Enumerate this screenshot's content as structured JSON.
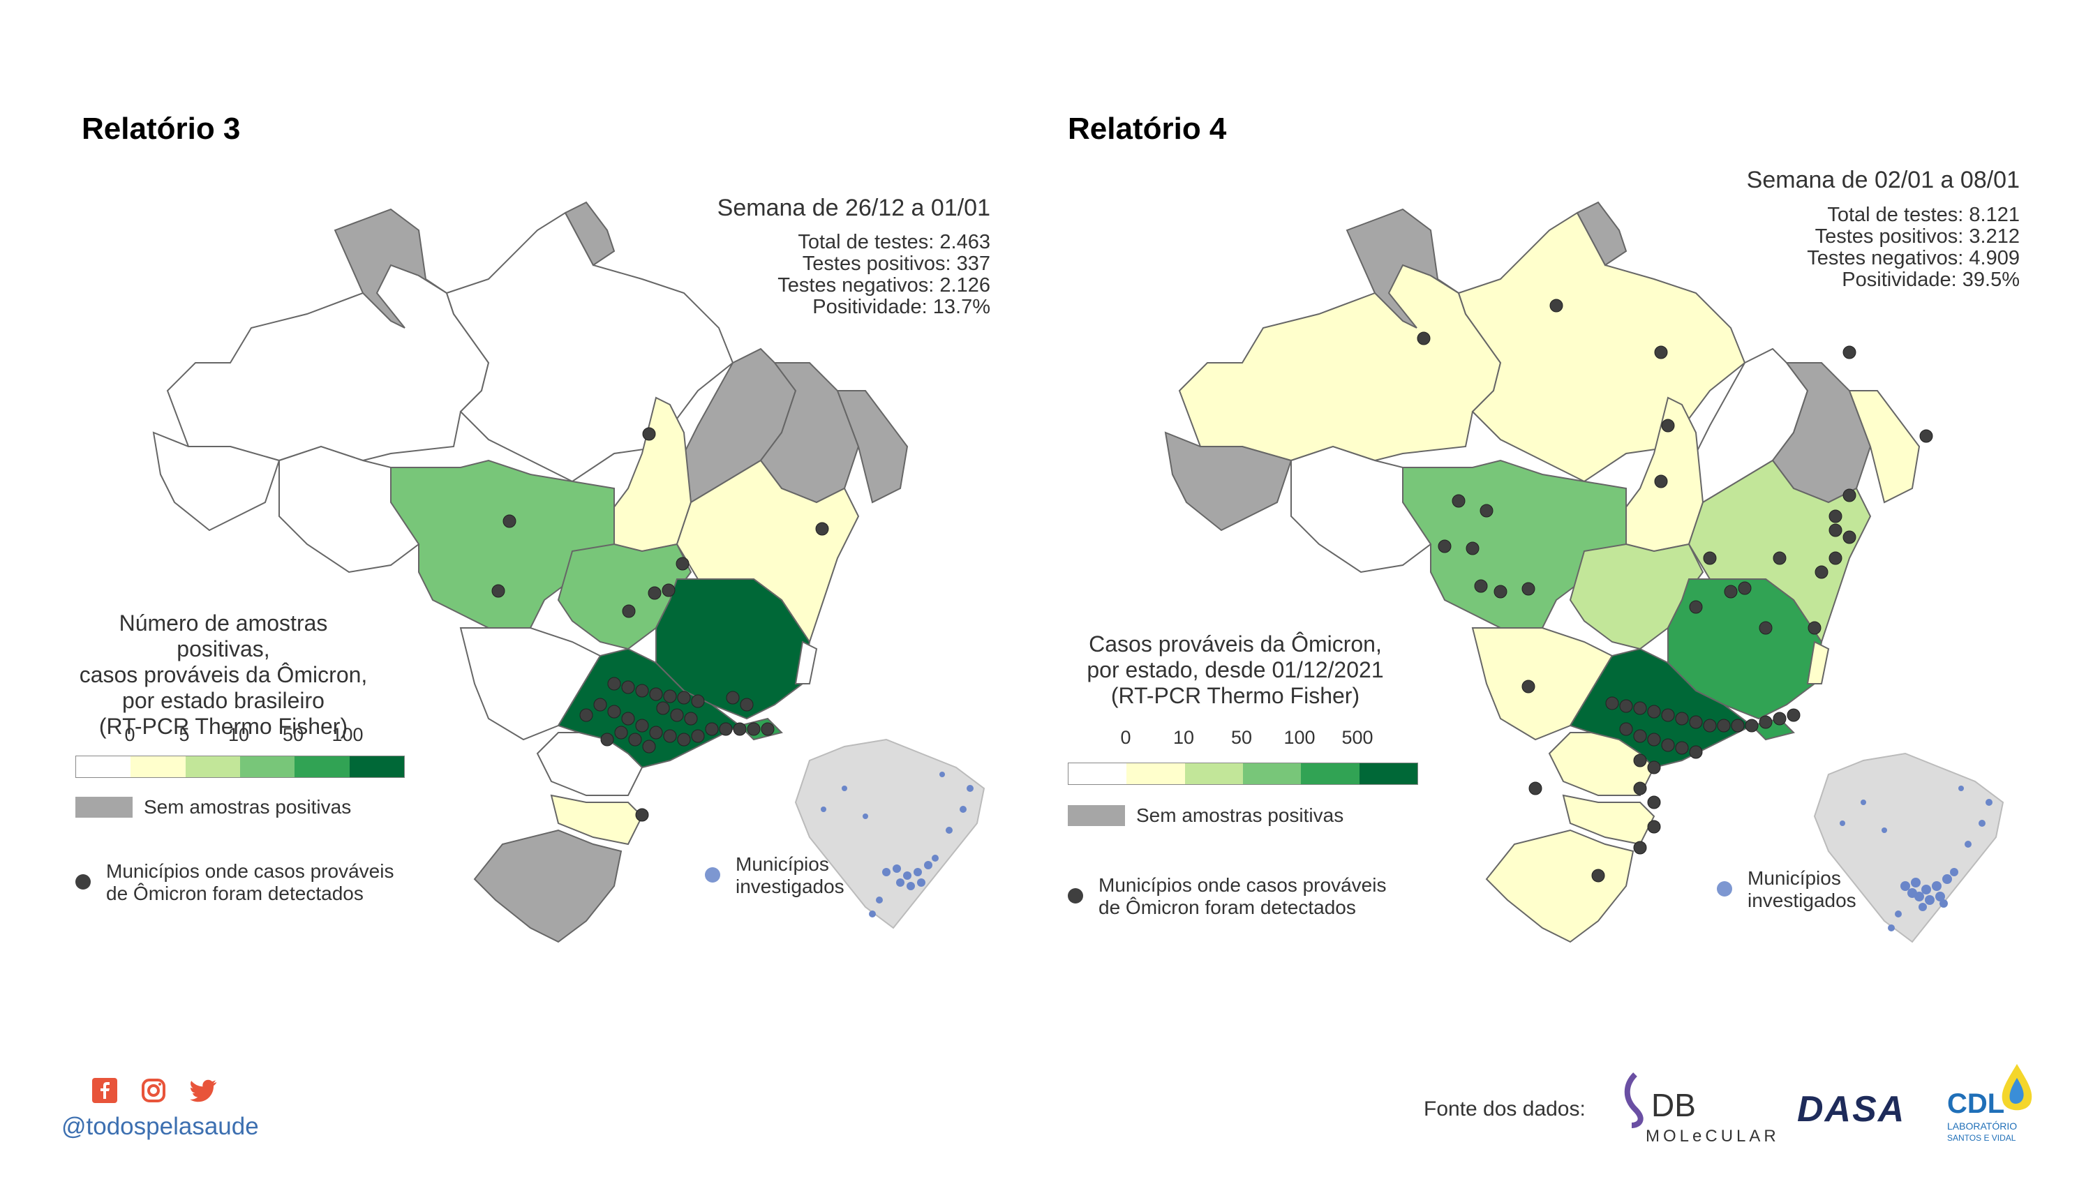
{
  "panels": [
    {
      "title": "Relatório 3",
      "week": "Semana de 26/12 a 01/01",
      "stats": [
        "Total de testes: 2.463",
        "Testes positivos: 337",
        "Testes negativos: 2.126",
        "Positividade: 13.7%"
      ],
      "legend_title": [
        "Número de amostras positivas,",
        "casos prováveis da Ômicron,",
        "por estado brasileiro",
        "(RT-PCR Thermo Fisher)"
      ],
      "legend_ticks": [
        "0",
        "5",
        "10",
        "50",
        "100"
      ],
      "legend_colors": [
        "#ffffff",
        "#ffffcc",
        "#c2e699",
        "#78c679",
        "#31a354",
        "#006837"
      ]
    },
    {
      "title": "Relatório 4",
      "week": "Semana de 02/01 a 08/01",
      "stats": [
        "Total de testes: 8.121",
        "Testes positivos: 3.212",
        "Testes negativos: 4.909",
        "Positividade: 39.5%"
      ],
      "legend_title": [
        "Casos prováveis da Ômicron,",
        "por estado, desde 01/12/2021",
        "(RT-PCR Thermo Fisher)"
      ],
      "legend_ticks": [
        "0",
        "10",
        "50",
        "100",
        "500"
      ],
      "legend_colors": [
        "#ffffff",
        "#ffffcc",
        "#c2e699",
        "#78c679",
        "#31a354",
        "#006837"
      ]
    }
  ],
  "legend_common": {
    "no_samples": "Sem amostras positivas",
    "no_samples_color": "#a6a6a6",
    "dots_label": [
      "Municípios onde casos prováveis",
      "de Ômicron foram detectados"
    ],
    "dot_color": "#3f3f3f",
    "investigated_label": [
      "Municípios",
      "investigados"
    ],
    "investigated_color": "#7d97d1"
  },
  "footer": {
    "handle": "@todospelasaude",
    "social_icons": [
      "facebook-icon",
      "instagram-icon",
      "twitter-icon"
    ],
    "social_color": "#e8543a",
    "source_label": "Fonte dos dados:",
    "logos": [
      {
        "name": "db-molecular-logo",
        "text": "DB",
        "subtext": "MOLeCULAR"
      },
      {
        "name": "dasa-logo",
        "text": "DASA"
      },
      {
        "name": "cdl-logo",
        "text": "CDL",
        "subtext": "LABORATÓRIO",
        "subtext2": "SANTOS E VIDAL"
      }
    ]
  }
}
